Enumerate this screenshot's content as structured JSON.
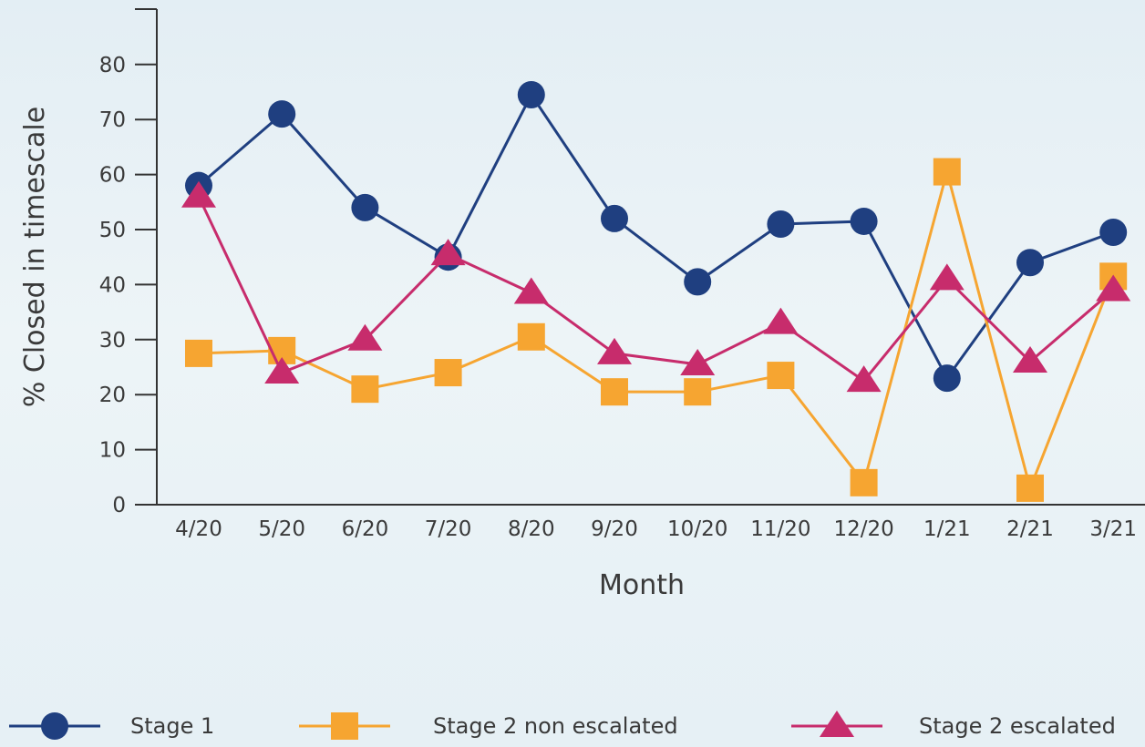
{
  "chart_data": {
    "type": "line",
    "xlabel": "Month",
    "ylabel": "% Closed in timescale",
    "ylim": [
      0,
      90
    ],
    "yticks": [
      0,
      10,
      20,
      30,
      40,
      50,
      60,
      70,
      80
    ],
    "categories": [
      "4/20",
      "5/20",
      "6/20",
      "7/20",
      "8/20",
      "9/20",
      "10/20",
      "11/20",
      "12/20",
      "1/21",
      "2/21",
      "3/21"
    ],
    "legend_position": "bottom",
    "grid": false,
    "series": [
      {
        "name": "Stage 1",
        "marker": "circle",
        "color": "#1f3f80",
        "values": [
          58,
          71,
          54,
          45,
          74.5,
          52,
          40.5,
          51,
          51.5,
          23,
          44,
          49.5
        ]
      },
      {
        "name": "Stage 2 non escalated",
        "marker": "square",
        "color": "#f6a531",
        "values": [
          27.5,
          28,
          21,
          24,
          30.5,
          20.5,
          20.5,
          23.5,
          4,
          60.5,
          3,
          41.5
        ]
      },
      {
        "name": "Stage 2  escalated",
        "marker": "triangle",
        "color": "#c72c6c",
        "values": [
          56,
          24,
          30,
          45.5,
          38.5,
          27.5,
          25.5,
          33,
          22.5,
          41,
          26,
          39
        ]
      }
    ]
  }
}
